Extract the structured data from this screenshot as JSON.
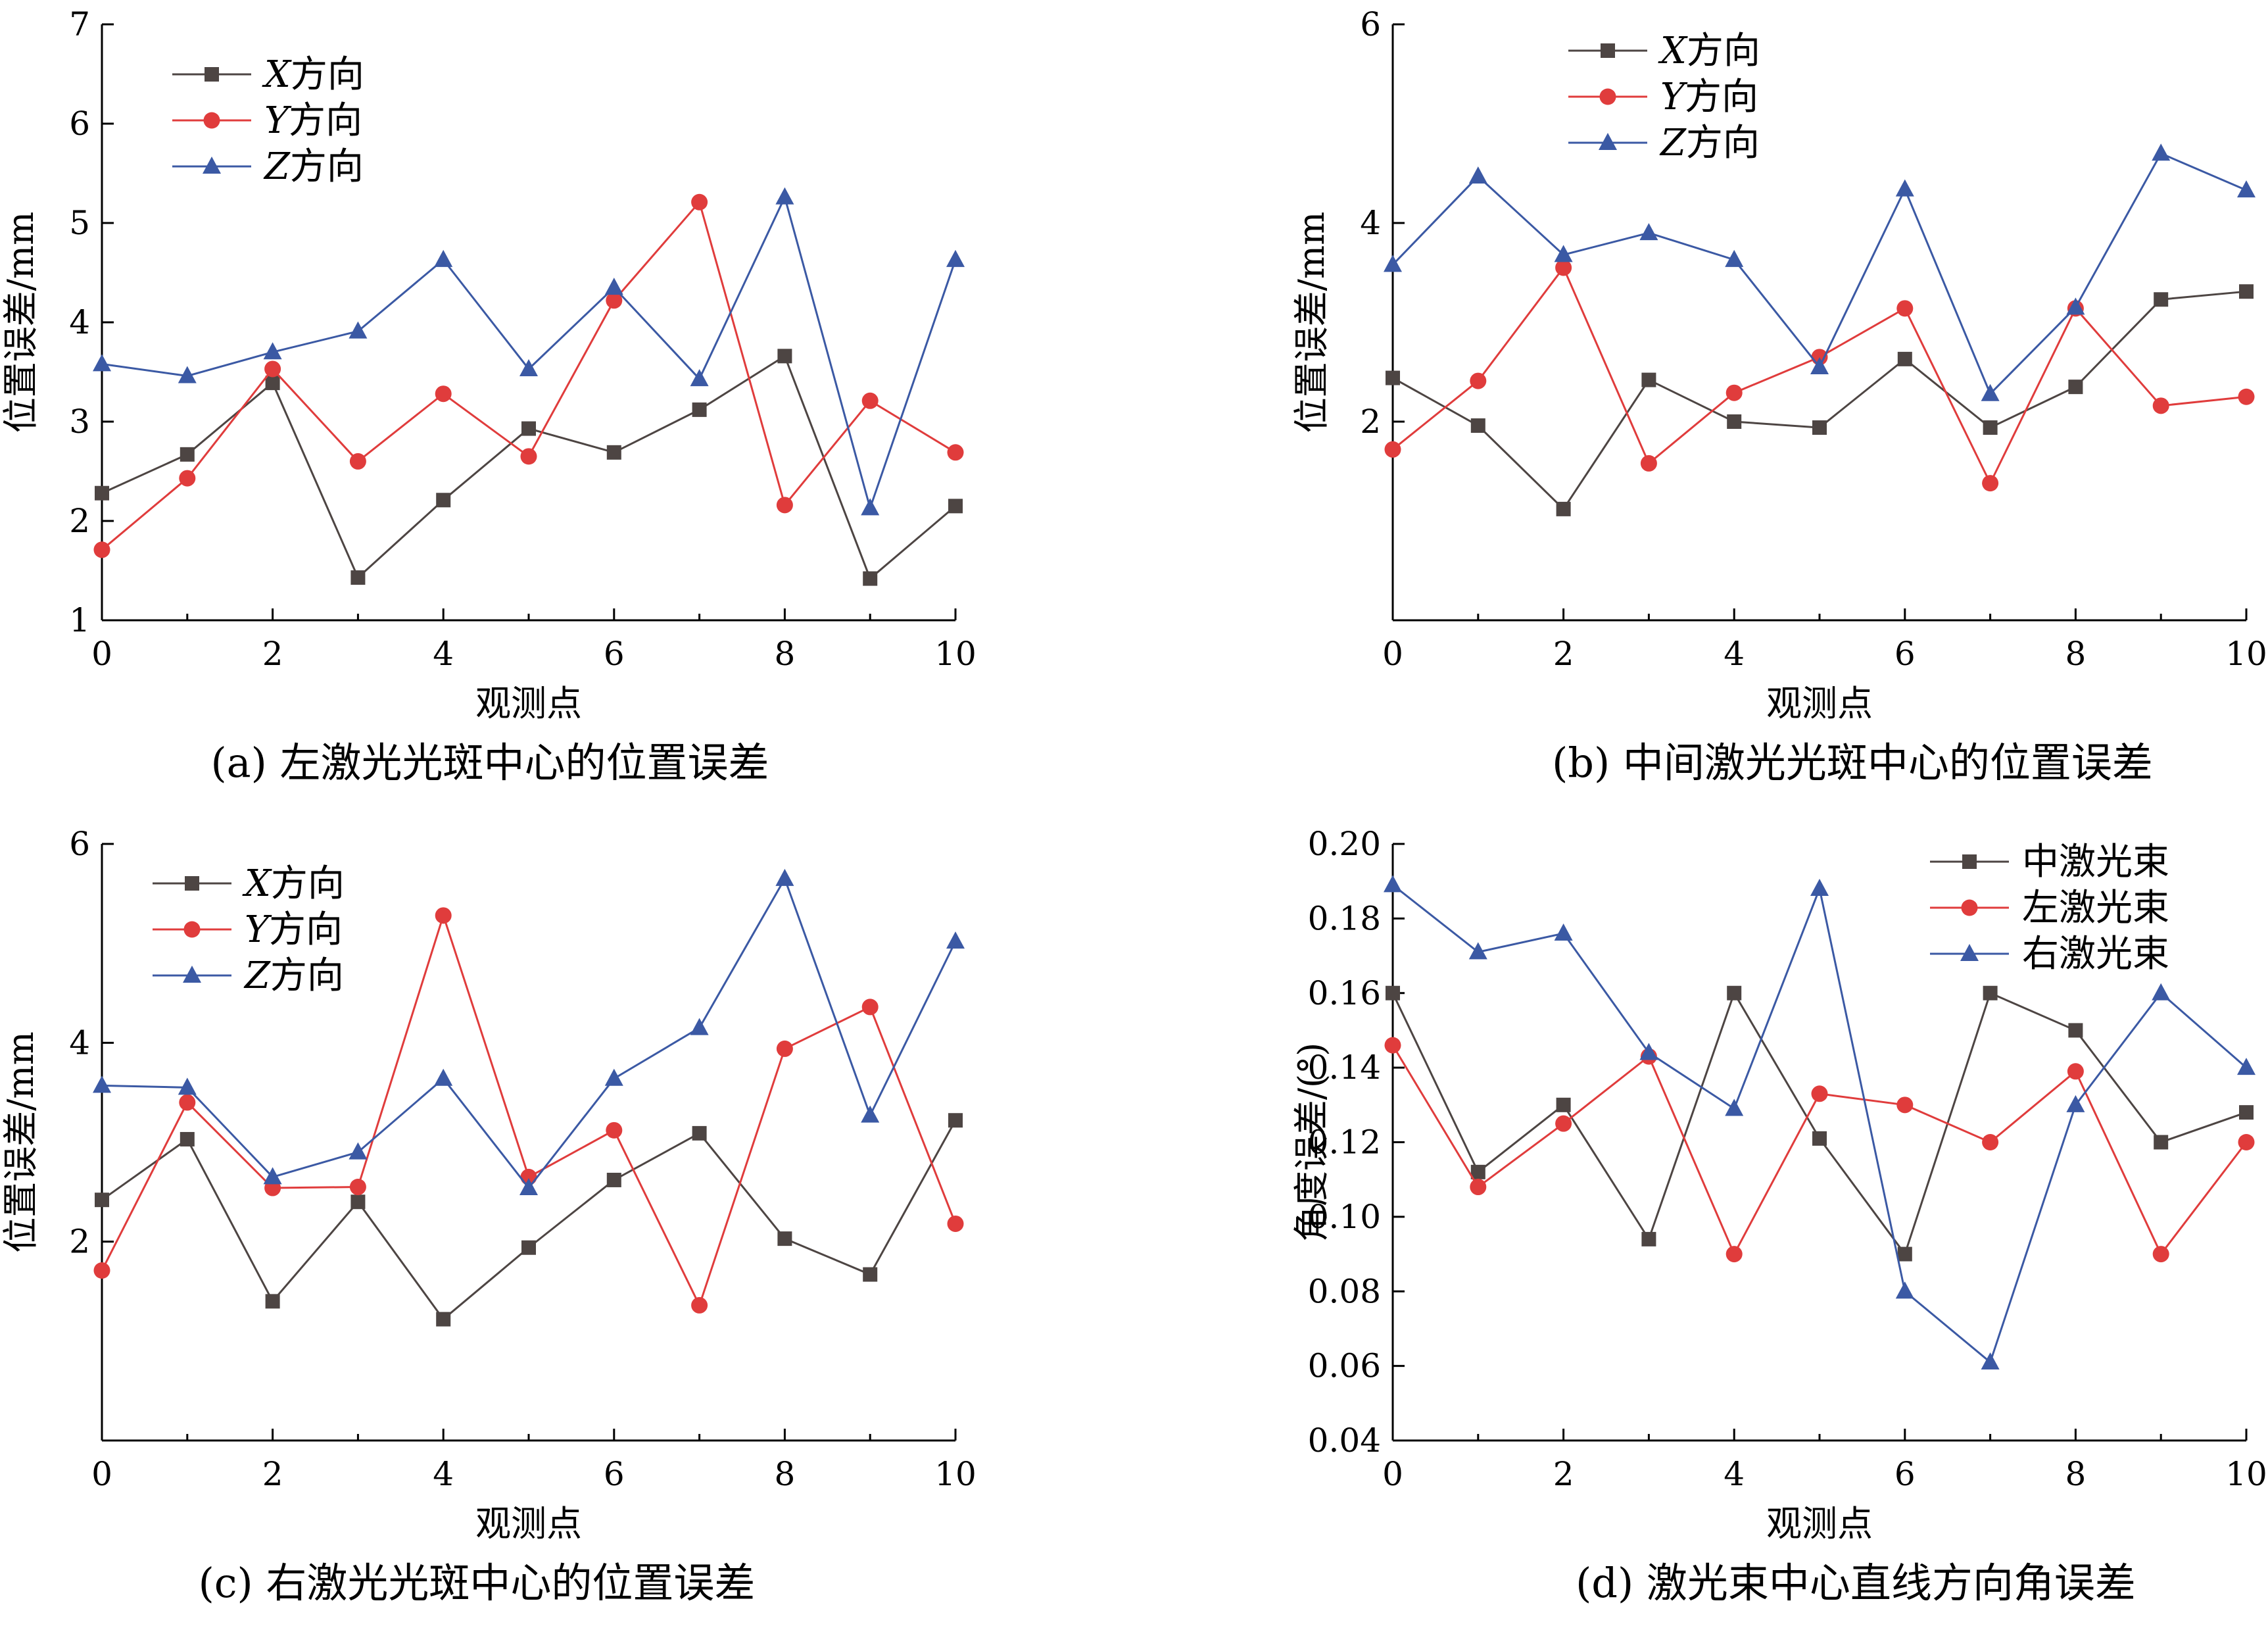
{
  "colors": {
    "X": "#4d4543",
    "Y": "#e03c3c",
    "Z": "#3b59a4"
  },
  "chart_data": [
    {
      "type": "line",
      "caption": "(a)  左激光光斑中心的位置误差",
      "xlabel": "观测点",
      "ylabel": "位置误差/mm",
      "xlim": [
        0,
        10
      ],
      "ylim": [
        1,
        7
      ],
      "x_ticks": [
        "0",
        "2",
        "4",
        "6",
        "8",
        "10"
      ],
      "y_ticks": [
        "1",
        "2",
        "3",
        "4",
        "5",
        "6",
        "7"
      ],
      "legend": "top-left",
      "x": [
        0,
        1,
        2,
        3,
        4,
        5,
        6,
        7,
        8,
        9,
        10
      ],
      "series": [
        {
          "name_prefix": "X",
          "name_suffix": "方向",
          "marker": "square",
          "color_key": "X",
          "values": [
            2.28,
            2.67,
            3.39,
            1.43,
            2.21,
            2.93,
            2.69,
            3.12,
            3.66,
            1.42,
            2.15
          ]
        },
        {
          "name_prefix": "Y",
          "name_suffix": "方向",
          "marker": "circle",
          "color_key": "Y",
          "values": [
            1.71,
            2.43,
            3.53,
            2.6,
            3.28,
            2.65,
            4.22,
            5.21,
            2.16,
            3.21,
            2.69
          ]
        },
        {
          "name_prefix": "Z",
          "name_suffix": "方向",
          "marker": "triangle",
          "color_key": "Z",
          "values": [
            3.58,
            3.46,
            3.7,
            3.91,
            4.63,
            3.53,
            4.35,
            3.43,
            5.26,
            2.13,
            4.63
          ]
        }
      ]
    },
    {
      "type": "line",
      "caption": "(b)  中间激光光斑中心的位置误差",
      "xlabel": "观测点",
      "ylabel": "位置误差/mm",
      "xlim": [
        0,
        10
      ],
      "ylim": [
        0,
        6
      ],
      "x_ticks": [
        "0",
        "2",
        "4",
        "6",
        "8",
        "10"
      ],
      "y_ticks": [
        "2",
        "4",
        "6"
      ],
      "legend": "top-left",
      "x": [
        0,
        1,
        2,
        3,
        4,
        5,
        6,
        7,
        8,
        9,
        10
      ],
      "series": [
        {
          "name_prefix": "X",
          "name_suffix": "方向",
          "marker": "square",
          "color_key": "X",
          "values": [
            2.44,
            1.96,
            1.12,
            2.42,
            2.0,
            1.94,
            2.63,
            1.94,
            2.35,
            3.23,
            3.31
          ]
        },
        {
          "name_prefix": "Y",
          "name_suffix": "方向",
          "marker": "circle",
          "color_key": "Y",
          "values": [
            1.72,
            2.41,
            3.55,
            1.58,
            2.29,
            2.65,
            3.14,
            1.38,
            3.14,
            2.16,
            2.25
          ]
        },
        {
          "name_prefix": "Z",
          "name_suffix": "方向",
          "marker": "triangle",
          "color_key": "Z",
          "values": [
            3.58,
            4.47,
            3.68,
            3.9,
            3.63,
            2.55,
            4.34,
            2.28,
            3.15,
            4.7,
            4.33
          ]
        }
      ]
    },
    {
      "type": "line",
      "caption": "(c) 右激光光斑中心的位置误差",
      "xlabel": "观测点",
      "ylabel": "位置误差/mm",
      "xlim": [
        0,
        10
      ],
      "ylim": [
        0,
        6
      ],
      "x_ticks": [
        "0",
        "2",
        "4",
        "6",
        "8",
        "10"
      ],
      "y_ticks": [
        "2",
        "4",
        "6"
      ],
      "legend": "top-left",
      "x": [
        0,
        1,
        2,
        3,
        4,
        5,
        6,
        7,
        8,
        9,
        10
      ],
      "series": [
        {
          "name_prefix": "X",
          "name_suffix": "方向",
          "marker": "square",
          "color_key": "X",
          "values": [
            2.42,
            3.03,
            1.4,
            2.4,
            1.22,
            1.94,
            2.62,
            3.09,
            2.03,
            1.67,
            3.22
          ]
        },
        {
          "name_prefix": "Y",
          "name_suffix": "方向",
          "marker": "circle",
          "color_key": "Y",
          "values": [
            1.71,
            3.4,
            2.54,
            2.55,
            5.28,
            2.65,
            3.12,
            1.36,
            3.94,
            4.36,
            2.18
          ]
        },
        {
          "name_prefix": "Z",
          "name_suffix": "方向",
          "marker": "triangle",
          "color_key": "Z",
          "values": [
            3.57,
            3.55,
            2.65,
            2.9,
            3.64,
            2.54,
            3.64,
            4.15,
            5.65,
            3.27,
            5.02
          ]
        }
      ]
    },
    {
      "type": "line",
      "caption": "(d) 激光束中心直线方向角误差",
      "xlabel": "观测点",
      "ylabel": "角度误差/(°)",
      "xlim": [
        0,
        10
      ],
      "ylim": [
        0.04,
        0.2
      ],
      "x_ticks": [
        "0",
        "2",
        "4",
        "6",
        "8",
        "10"
      ],
      "y_ticks": [
        "0.04",
        "0.06",
        "0.08",
        "0.10",
        "0.12",
        "0.14",
        "0.16",
        "0.18",
        "0.20"
      ],
      "legend": "top-right",
      "x": [
        0,
        1,
        2,
        3,
        4,
        5,
        6,
        7,
        8,
        9,
        10
      ],
      "series": [
        {
          "name_prefix": "",
          "name_suffix": "中激光束",
          "marker": "square",
          "color_key": "X",
          "values": [
            0.16,
            0.112,
            0.13,
            0.094,
            0.16,
            0.121,
            0.09,
            0.16,
            0.15,
            0.12,
            0.128
          ]
        },
        {
          "name_prefix": "",
          "name_suffix": "左激光束",
          "marker": "circle",
          "color_key": "Y",
          "values": [
            0.146,
            0.108,
            0.125,
            0.143,
            0.09,
            0.133,
            0.13,
            0.12,
            0.139,
            0.09,
            0.12
          ]
        },
        {
          "name_prefix": "",
          "name_suffix": "右激光束",
          "marker": "triangle",
          "color_key": "Z",
          "values": [
            0.189,
            0.171,
            0.176,
            0.144,
            0.129,
            0.188,
            0.08,
            0.061,
            0.13,
            0.16,
            0.14
          ]
        }
      ]
    }
  ]
}
